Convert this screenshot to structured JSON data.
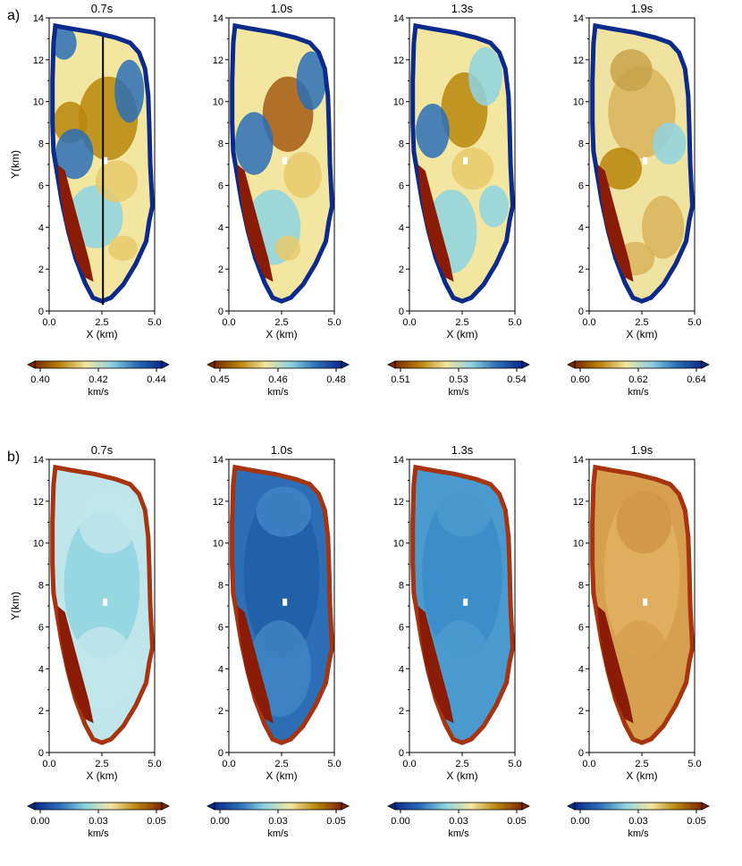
{
  "figure": {
    "rows": [
      {
        "label": "a)",
        "colormap": "roma",
        "panels": [
          {
            "title": "0.7s",
            "ticks": [
              "0.40",
              "0.42",
              "0.44"
            ],
            "unit": "km/s",
            "has_profile_line": true
          },
          {
            "title": "1.0s",
            "ticks": [
              "0.45",
              "0.46",
              "0.48"
            ],
            "unit": "km/s",
            "has_profile_line": false
          },
          {
            "title": "1.3s",
            "ticks": [
              "0.51",
              "0.53",
              "0.54"
            ],
            "unit": "km/s",
            "has_profile_line": false
          },
          {
            "title": "1.9s",
            "ticks": [
              "0.60",
              "0.62",
              "0.64"
            ],
            "unit": "km/s",
            "has_profile_line": false
          }
        ]
      },
      {
        "label": "b)",
        "colormap": "roma_reversed",
        "panels": [
          {
            "title": "0.7s",
            "ticks": [
              "0.00",
              "0.03",
              "0.05"
            ],
            "unit": "km/s",
            "has_profile_line": false
          },
          {
            "title": "1.0s",
            "ticks": [
              "0.00",
              "0.03",
              "0.05"
            ],
            "unit": "km/s",
            "has_profile_line": false
          },
          {
            "title": "1.3s",
            "ticks": [
              "0.00",
              "0.03",
              "0.05"
            ],
            "unit": "km/s",
            "has_profile_line": false
          },
          {
            "title": "1.9s",
            "ticks": [
              "0.00",
              "0.03",
              "0.05"
            ],
            "unit": "km/s",
            "has_profile_line": false
          }
        ]
      }
    ],
    "x_axis": {
      "label": "X (km)",
      "ticks": [
        "0.0",
        "2.5",
        "5.0"
      ],
      "range": [
        0,
        5
      ]
    },
    "y_axis": {
      "label": "Y(km)",
      "ticks": [
        "0",
        "2",
        "4",
        "6",
        "8",
        "10",
        "12",
        "14"
      ],
      "range": [
        0,
        14
      ]
    },
    "colors": {
      "roma": [
        "#7f2704",
        "#b8860b",
        "#f2e6a0",
        "#8fd3e0",
        "#2c6fb7",
        "#0b2a8c"
      ],
      "roma_reversed": [
        "#0b2a8c",
        "#2c6fb7",
        "#8fd3e0",
        "#f2e6a0",
        "#b8860b",
        "#7f2704"
      ]
    }
  }
}
